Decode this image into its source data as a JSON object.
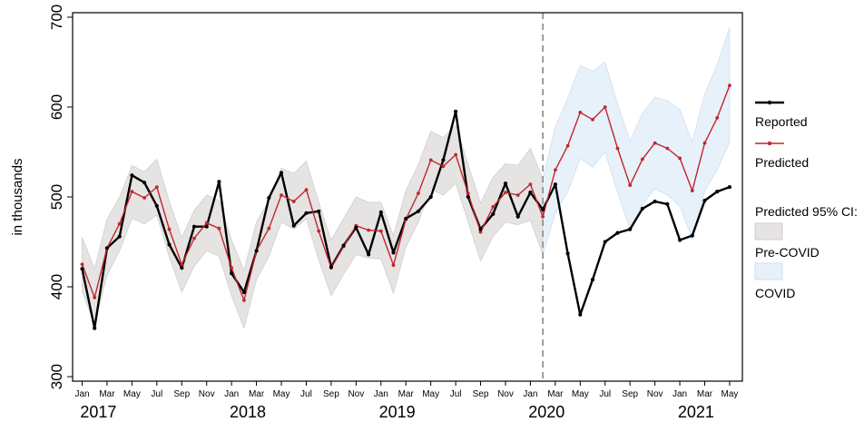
{
  "chart_data": {
    "type": "line",
    "ylabel": "in thousands",
    "ylim": [
      295,
      705
    ],
    "yticks": [
      300,
      400,
      500,
      600,
      700
    ],
    "x": [
      "Jan 2017",
      "Feb 2017",
      "Mar 2017",
      "Apr 2017",
      "May 2017",
      "Jun 2017",
      "Jul 2017",
      "Aug 2017",
      "Sep 2017",
      "Oct 2017",
      "Nov 2017",
      "Dec 2017",
      "Jan 2018",
      "Feb 2018",
      "Mar 2018",
      "Apr 2018",
      "May 2018",
      "Jun 2018",
      "Jul 2018",
      "Aug 2018",
      "Sep 2018",
      "Oct 2018",
      "Nov 2018",
      "Dec 2018",
      "Jan 2019",
      "Feb 2019",
      "Mar 2019",
      "Apr 2019",
      "May 2019",
      "Jun 2019",
      "Jul 2019",
      "Aug 2019",
      "Sep 2019",
      "Oct 2019",
      "Nov 2019",
      "Dec 2019",
      "Jan 2020",
      "Feb 2020",
      "Mar 2020",
      "Apr 2020",
      "May 2020",
      "Jun 2020",
      "Jul 2020",
      "Aug 2020",
      "Sep 2020",
      "Oct 2020",
      "Nov 2020",
      "Dec 2020",
      "Jan 2021",
      "Feb 2021",
      "Mar 2021",
      "Apr 2021",
      "May 2021"
    ],
    "month_tick_labels": [
      "Jan",
      "Mar",
      "May",
      "Jul",
      "Sep",
      "Nov",
      "Jan",
      "Mar",
      "May",
      "Jul",
      "Sep",
      "Nov",
      "Jan",
      "Mar",
      "May",
      "Jul",
      "Sep",
      "Nov",
      "Jan",
      "Mar",
      "May",
      "Jul",
      "Sep",
      "Nov",
      "Jan",
      "Mar",
      "May"
    ],
    "year_labels": [
      "2017",
      "2018",
      "2019",
      "2020",
      "2021"
    ],
    "covid_start": "Feb 2020",
    "series": [
      {
        "name": "Reported",
        "color": "#000000",
        "values": [
          420,
          354,
          443,
          456,
          524,
          516,
          490,
          447,
          421,
          467,
          467,
          517,
          415,
          394,
          440,
          499,
          527,
          468,
          482,
          484,
          422,
          446,
          466,
          436,
          483,
          438,
          476,
          484,
          500,
          541,
          595,
          500,
          464,
          481,
          515,
          478,
          505,
          486,
          514,
          437,
          369,
          408,
          450,
          460,
          464,
          487,
          495,
          492,
          452,
          457,
          496,
          506,
          511
        ]
      },
      {
        "name": "Predicted",
        "color": "#c1272d",
        "values": [
          425,
          388,
          443,
          470,
          506,
          499,
          511,
          464,
          425,
          454,
          471,
          465,
          421,
          385,
          440,
          465,
          502,
          495,
          508,
          462,
          421,
          445,
          468,
          463,
          462,
          424,
          475,
          504,
          541,
          534,
          547,
          504,
          461,
          489,
          505,
          502,
          514,
          478,
          530,
          557,
          594,
          586,
          600,
          554,
          513,
          542,
          560,
          554,
          543,
          507,
          560,
          588,
          624
        ]
      }
    ],
    "ci_pre": {
      "upper": [
        455,
        420,
        475,
        500,
        535,
        528,
        542,
        495,
        455,
        485,
        502,
        496,
        452,
        418,
        472,
        496,
        532,
        526,
        540,
        494,
        452,
        476,
        500,
        494,
        494,
        457,
        507,
        536,
        573,
        566,
        580,
        536,
        493,
        522,
        537,
        535,
        554,
        520
      ],
      "lower": [
        395,
        358,
        413,
        440,
        476,
        470,
        480,
        433,
        394,
        423,
        440,
        434,
        390,
        354,
        408,
        434,
        472,
        464,
        476,
        430,
        390,
        414,
        436,
        432,
        431,
        393,
        444,
        472,
        509,
        502,
        515,
        472,
        429,
        456,
        472,
        469,
        474,
        436
      ]
    },
    "ci_covid": {
      "upper": [
        520,
        578,
        610,
        646,
        640,
        650,
        603,
        562,
        593,
        611,
        607,
        597,
        561,
        614,
        647,
        688
      ],
      "lower": [
        436,
        482,
        506,
        543,
        533,
        550,
        505,
        464,
        492,
        509,
        502,
        490,
        453,
        507,
        530,
        561
      ]
    },
    "legend": {
      "reported": "Reported",
      "predicted": "Predicted",
      "ci_title": "Predicted 95% CI:",
      "pre_covid": "Pre-COVID",
      "covid": "COVID"
    },
    "colors": {
      "reported": "#000000",
      "predicted": "#c1272d",
      "ci_pre_fill": "#e6e3e3",
      "ci_pre_stroke": "#d2cece",
      "ci_covid_fill": "#e7f1fa",
      "ci_covid_stroke": "#cddff0",
      "divider": "#888888"
    }
  }
}
